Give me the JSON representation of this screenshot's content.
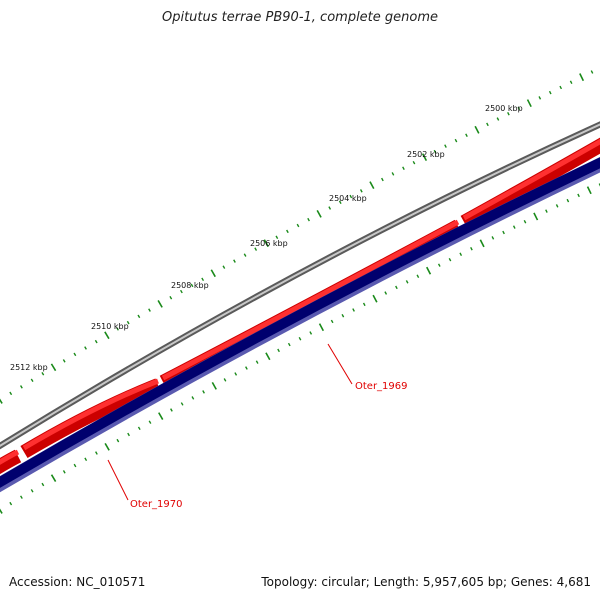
{
  "title": "Opitutus terrae PB90-1, complete genome",
  "footer": {
    "accession": "Accession: NC_010571",
    "summary": "Topology: circular; Length: 5,957,605 bp; Genes: 4,681"
  },
  "colors": {
    "backbone": "#7f7f7f",
    "forward_genes": "#ee0000",
    "reverse_genes": "#00007f",
    "ticks": "#1a8a1a",
    "label": "#e00000"
  },
  "tick_labels": [
    {
      "label": "2500 kbp",
      "kbp": 2500
    },
    {
      "label": "2502 kbp",
      "kbp": 2502
    },
    {
      "label": "2504 kbp",
      "kbp": 2504
    },
    {
      "label": "2506 kbp",
      "kbp": 2506
    },
    {
      "label": "2508 kbp",
      "kbp": 2508
    },
    {
      "label": "2510 kbp",
      "kbp": 2510
    },
    {
      "label": "2512 kbp",
      "kbp": 2512
    }
  ],
  "gene_labels": [
    {
      "name": "Oter_1969"
    },
    {
      "name": "Oter_1970"
    }
  ]
}
